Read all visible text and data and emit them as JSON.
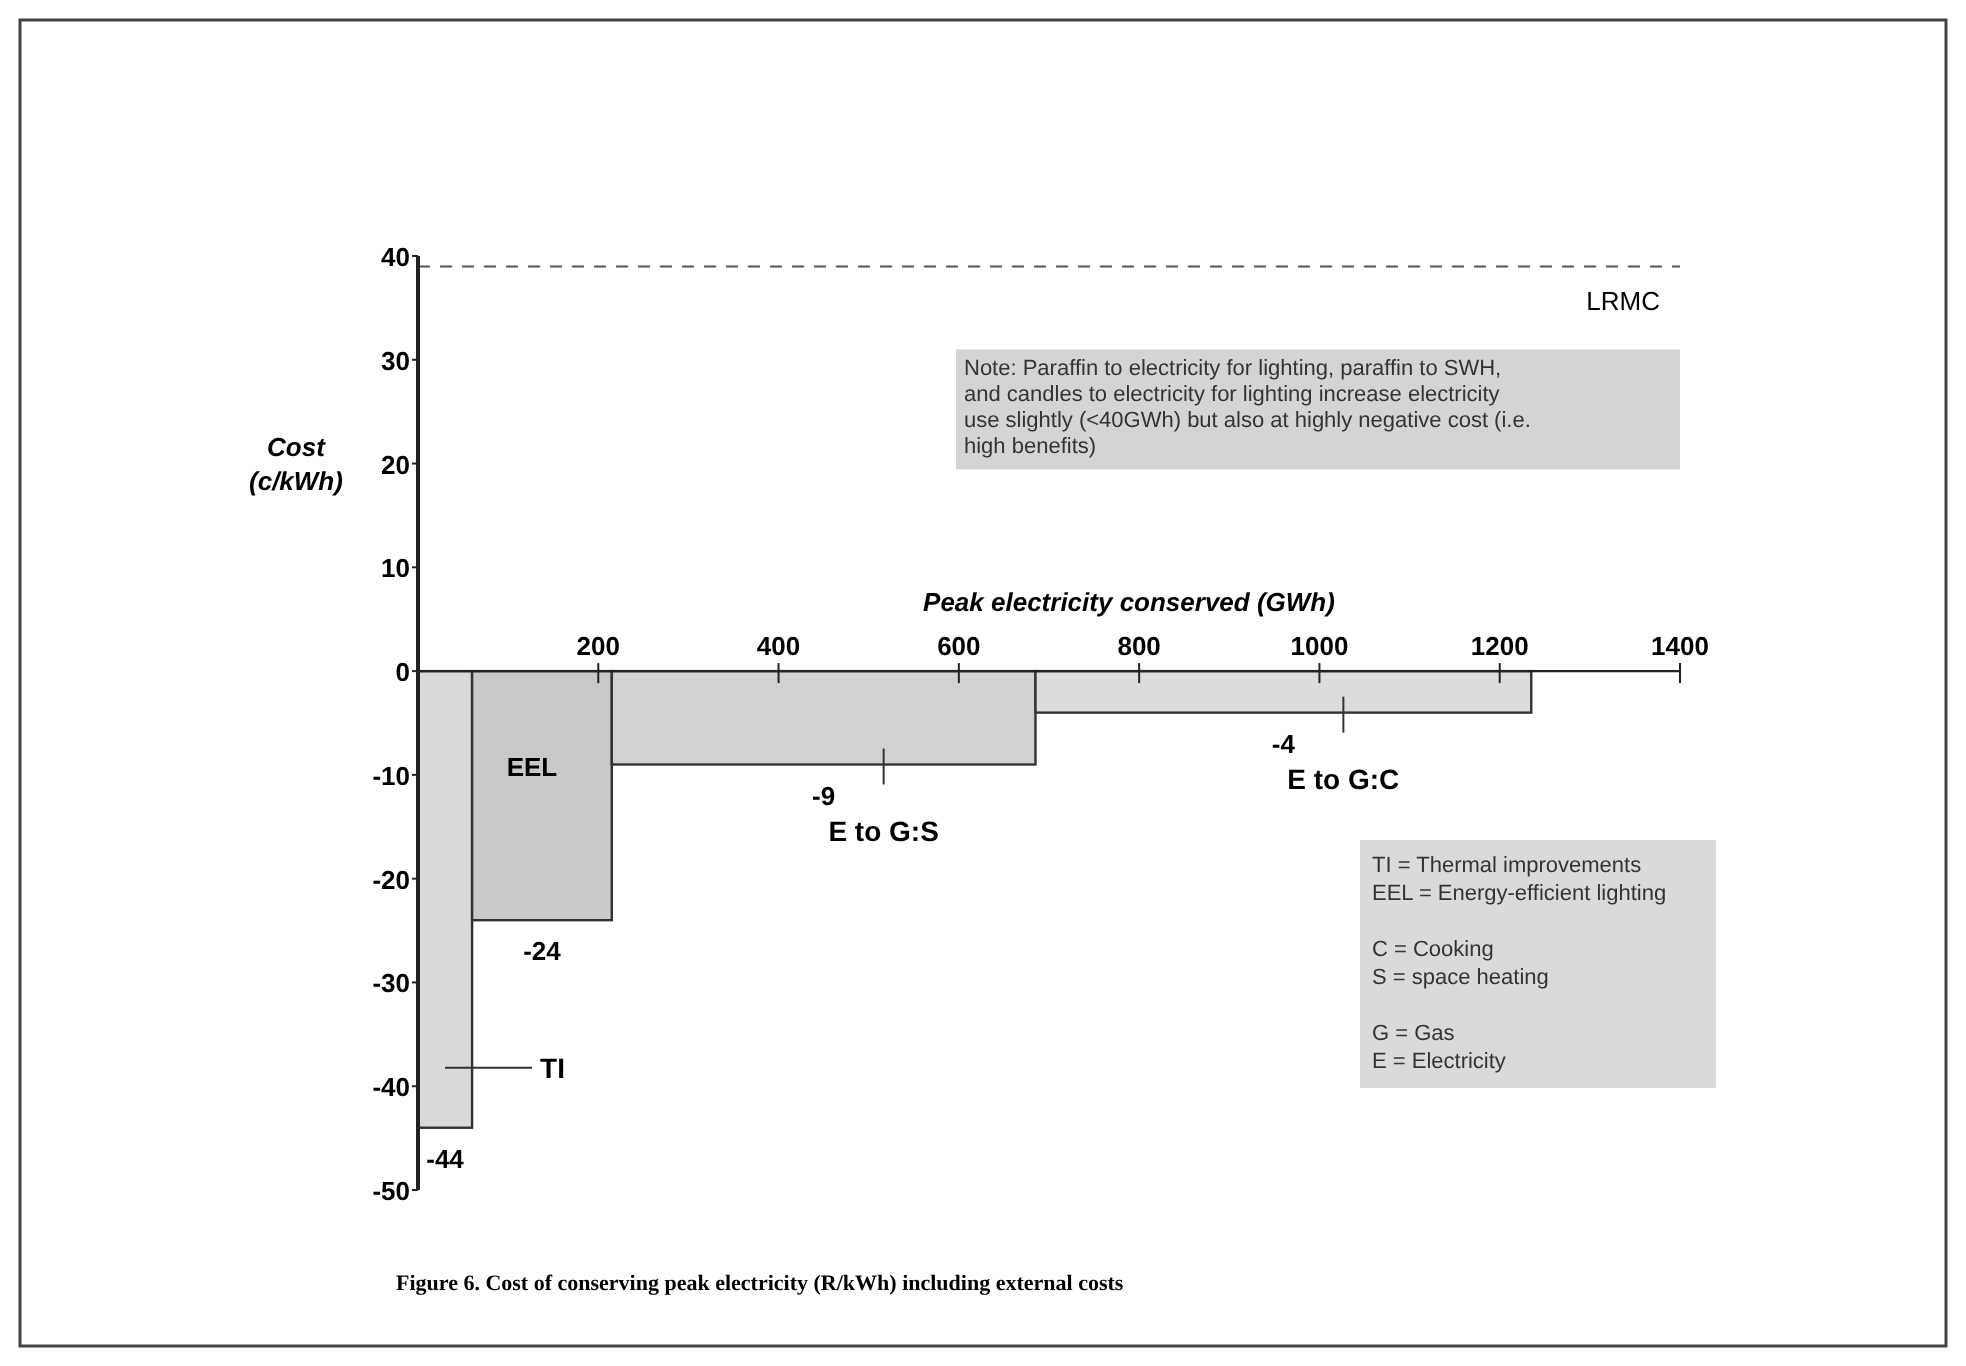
{
  "chart_data": {
    "type": "histogram",
    "title": "Figure 6. Cost of conserving peak electricity (R/kWh) including external costs",
    "xlabel": "Peak electricity conserved (GWh)",
    "ylabel": "Cost (c/kWh)",
    "bins": [
      0,
      60,
      215,
      685,
      1235
    ],
    "values": [
      -44,
      -24,
      -9,
      -4
    ],
    "colors": [
      "#dadada",
      "#c9c9c9",
      "#d2d2d2",
      "#dcdcdc"
    ],
    "data_labels": true,
    "xlim": [
      0,
      1400
    ],
    "xticks": [
      200,
      400,
      600,
      800,
      1000,
      1200,
      1400
    ],
    "ylim": [
      -50,
      40
    ],
    "yticks": [
      40,
      30,
      20,
      10,
      0,
      -10,
      -20,
      -30,
      -40,
      -50
    ],
    "ref_lines": [
      {
        "axis": "y",
        "value": 39,
        "label": "LRMC",
        "line_style": "dashed"
      }
    ],
    "annotations": [
      "TI",
      "EEL",
      "E to G:S",
      "E to G:C",
      "Note: Paraffin to electricity for lighting, paraffin to SWH, and candles to electricity for lighting increase electricity use slightly (<40GWh) but also at highly negative cost (i.e. high benefits)",
      "TI = Thermal improvements\nEEL = Energy-efficient lighting\n\nC = Cooking\nS = space heating\n\nG = Gas\nE = Electricity"
    ]
  }
}
